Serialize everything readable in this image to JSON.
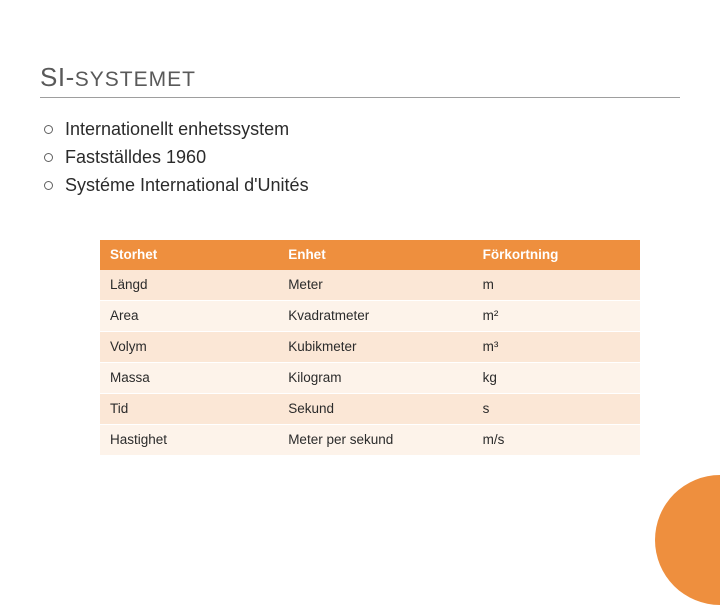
{
  "colors": {
    "accent": "#ee8f3e",
    "row_odd": "#fbe7d6",
    "row_even": "#fdf3ea",
    "title_color": "#595959",
    "text_color": "#2b2b2b",
    "background": "#ffffff",
    "title_rule": "#9e9e9e"
  },
  "typography": {
    "title_big_pt": 26,
    "title_rest_pt": 21,
    "bullet_pt": 18,
    "table_pt": 13.5,
    "font_family": "Arial"
  },
  "title": {
    "big": "SI-",
    "rest": "SYSTEMET"
  },
  "bullets": [
    "Internationellt enhetssystem",
    "Fastställdes 1960",
    "Systéme International d'Unités"
  ],
  "table": {
    "columns": [
      "Storhet",
      "Enhet",
      "Förkortning"
    ],
    "column_widths_pct": [
      33,
      36,
      31
    ],
    "rows": [
      [
        "Längd",
        "Meter",
        "m"
      ],
      [
        "Area",
        "Kvadratmeter",
        "m²"
      ],
      [
        "Volym",
        "Kubikmeter",
        "m³"
      ],
      [
        "Massa",
        "Kilogram",
        "kg"
      ],
      [
        "Tid",
        "Sekund",
        "s"
      ],
      [
        "Hastighet",
        "Meter per sekund",
        "m/s"
      ]
    ]
  }
}
